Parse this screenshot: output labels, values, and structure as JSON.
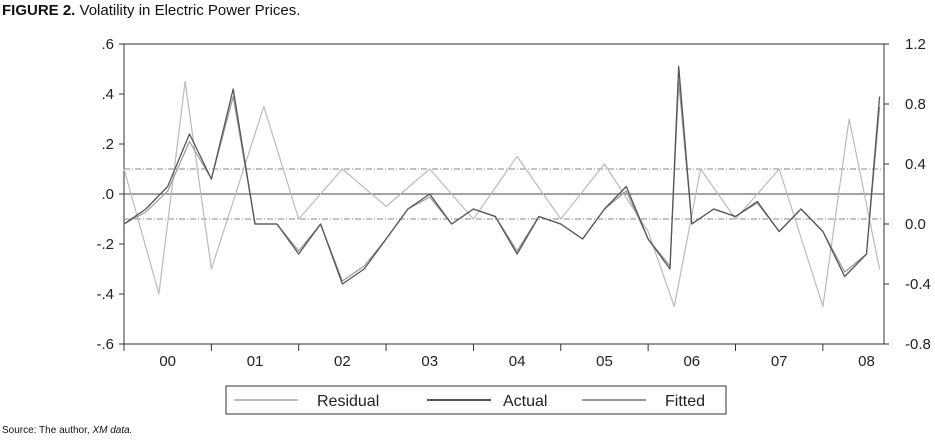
{
  "figure": {
    "title_prefix": "FIGURE 2.",
    "title_text": " Volatility in Electric Power Prices.",
    "source_prefix": "Source: The author, ",
    "source_italic": "XM data."
  },
  "chart_data": {
    "type": "line",
    "title": "FIGURE 2. Volatility in Electric Power Prices.",
    "x_tick_labels": [
      "00",
      "01",
      "02",
      "03",
      "04",
      "05",
      "06",
      "07",
      "08"
    ],
    "left_axis": {
      "tick_labels": [
        ".6",
        ".4",
        ".2",
        ".0",
        "-.2",
        "-.4",
        "-.6"
      ],
      "ticks": [
        0.6,
        0.4,
        0.2,
        0.0,
        -0.2,
        -0.4,
        -0.6
      ],
      "range": [
        -0.6,
        0.6
      ],
      "applies_to": [
        "Residual"
      ]
    },
    "right_axis": {
      "tick_labels": [
        "1.2",
        "0.8",
        "0.4",
        "0.0",
        "-0.4",
        "-0.8"
      ],
      "ticks": [
        1.2,
        0.8,
        0.4,
        0.0,
        -0.4,
        -0.8
      ],
      "range": [
        -0.8,
        1.2
      ],
      "applies_to": [
        "Actual",
        "Fitted"
      ]
    },
    "residual_bands": [
      0.1,
      -0.1
    ],
    "series": [
      {
        "name": "Actual",
        "color": "#555555",
        "x": [
          2000.0,
          2000.25,
          2000.5,
          2000.75,
          2001.0,
          2001.25,
          2001.5,
          2001.75,
          2002.0,
          2002.25,
          2002.5,
          2002.75,
          2003.0,
          2003.25,
          2003.5,
          2003.75,
          2004.0,
          2004.25,
          2004.5,
          2004.75,
          2005.0,
          2005.25,
          2005.5,
          2005.75,
          2006.0,
          2006.25,
          2006.35,
          2006.5,
          2006.75,
          2007.0,
          2007.25,
          2007.5,
          2007.75,
          2008.0,
          2008.25,
          2008.5,
          2008.65
        ],
        "y": [
          0.0,
          0.1,
          0.25,
          0.6,
          0.3,
          0.9,
          0.0,
          0.0,
          -0.2,
          0.0,
          -0.4,
          -0.3,
          -0.1,
          0.1,
          0.2,
          0.0,
          0.1,
          0.05,
          -0.2,
          0.05,
          0.0,
          -0.1,
          0.1,
          0.25,
          -0.1,
          -0.3,
          1.05,
          0.0,
          0.1,
          0.05,
          0.15,
          -0.05,
          0.1,
          -0.05,
          -0.35,
          -0.2,
          0.85
        ]
      },
      {
        "name": "Fitted",
        "color": "#999999",
        "x": [
          2000.0,
          2000.25,
          2000.5,
          2000.75,
          2001.0,
          2001.25,
          2001.5,
          2001.75,
          2002.0,
          2002.25,
          2002.5,
          2002.75,
          2003.0,
          2003.25,
          2003.5,
          2003.75,
          2004.0,
          2004.25,
          2004.5,
          2004.75,
          2005.0,
          2005.25,
          2005.5,
          2005.75,
          2006.0,
          2006.25,
          2006.35,
          2006.5,
          2006.75,
          2007.0,
          2007.25,
          2007.5,
          2007.75,
          2008.0,
          2008.25,
          2008.5,
          2008.65
        ],
        "y": [
          0.0,
          0.08,
          0.22,
          0.55,
          0.3,
          0.85,
          0.0,
          0.0,
          -0.18,
          0.0,
          -0.38,
          -0.28,
          -0.1,
          0.1,
          0.18,
          0.0,
          0.1,
          0.05,
          -0.18,
          0.05,
          0.0,
          -0.1,
          0.1,
          0.22,
          -0.1,
          -0.28,
          0.95,
          0.0,
          0.1,
          0.05,
          0.14,
          -0.05,
          0.1,
          -0.05,
          -0.32,
          -0.2,
          0.78
        ]
      },
      {
        "name": "Residual",
        "color": "#bbbbbb",
        "x": [
          2000.0,
          2000.4,
          2000.7,
          2001.0,
          2001.6,
          2002.0,
          2002.5,
          2003.0,
          2003.5,
          2004.0,
          2004.5,
          2005.0,
          2005.5,
          2006.0,
          2006.3,
          2006.6,
          2007.0,
          2007.5,
          2008.0,
          2008.3,
          2008.65
        ],
        "y": [
          0.1,
          -0.4,
          0.45,
          -0.3,
          0.35,
          -0.1,
          0.1,
          -0.05,
          0.1,
          -0.1,
          0.15,
          -0.1,
          0.12,
          -0.15,
          -0.45,
          0.1,
          -0.1,
          0.1,
          -0.45,
          0.3,
          -0.3
        ]
      }
    ],
    "legend": {
      "placement": "bottom-center",
      "entries": [
        "Residual",
        "Actual",
        "Fitted"
      ]
    }
  }
}
